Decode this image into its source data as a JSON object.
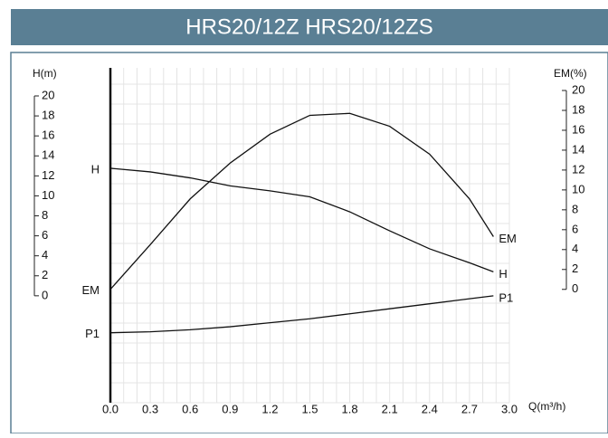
{
  "chart_data": {
    "type": "line",
    "title": "HRS20/12Z HRS20/12ZS",
    "ylabel": "H(m)",
    "y2label": "EM(%)",
    "xlabel": "Q(m³/h)",
    "x": [
      0,
      0.3,
      0.6,
      0.9,
      1.2,
      1.5,
      1.8,
      2.1,
      2.4,
      2.7,
      2.88
    ],
    "xlim": [
      0,
      3.0
    ],
    "xticks": [
      {
        "value": 0,
        "label": "0.0"
      },
      0.3,
      0.6,
      0.9,
      1.2,
      1.5,
      1.8,
      2.1,
      2.4,
      2.7,
      {
        "value": 3,
        "label": "3.0"
      }
    ],
    "ylim": [
      -10.7,
      20
    ],
    "yticks": [
      0,
      2,
      4,
      6,
      8,
      10,
      12,
      14,
      16,
      18,
      20
    ],
    "y2lim": [
      -11.4,
      20
    ],
    "y2ticks": [
      0,
      2,
      4,
      6,
      8,
      10,
      12,
      14,
      16,
      18,
      20
    ],
    "grid": true,
    "series": [
      {
        "name": "H",
        "color": "#111111",
        "values": [
          12.76,
          12.4,
          11.8,
          11.0,
          10.5,
          9.9,
          8.4,
          6.5,
          4.7,
          3.3,
          2.4
        ]
      },
      {
        "name": "EM",
        "color": "#111111",
        "axis": "y2",
        "values": [
          0,
          4.5,
          9.1,
          12.7,
          15.6,
          17.5,
          17.7,
          16.4,
          13.6,
          9.1,
          5.3
        ]
      },
      {
        "name": "P1",
        "color": "#111111",
        "values": [
          -3.7,
          -3.6,
          -3.4,
          -3.1,
          -2.7,
          -2.3,
          -1.8,
          -1.3,
          -0.8,
          -0.3,
          0.0
        ]
      }
    ]
  }
}
